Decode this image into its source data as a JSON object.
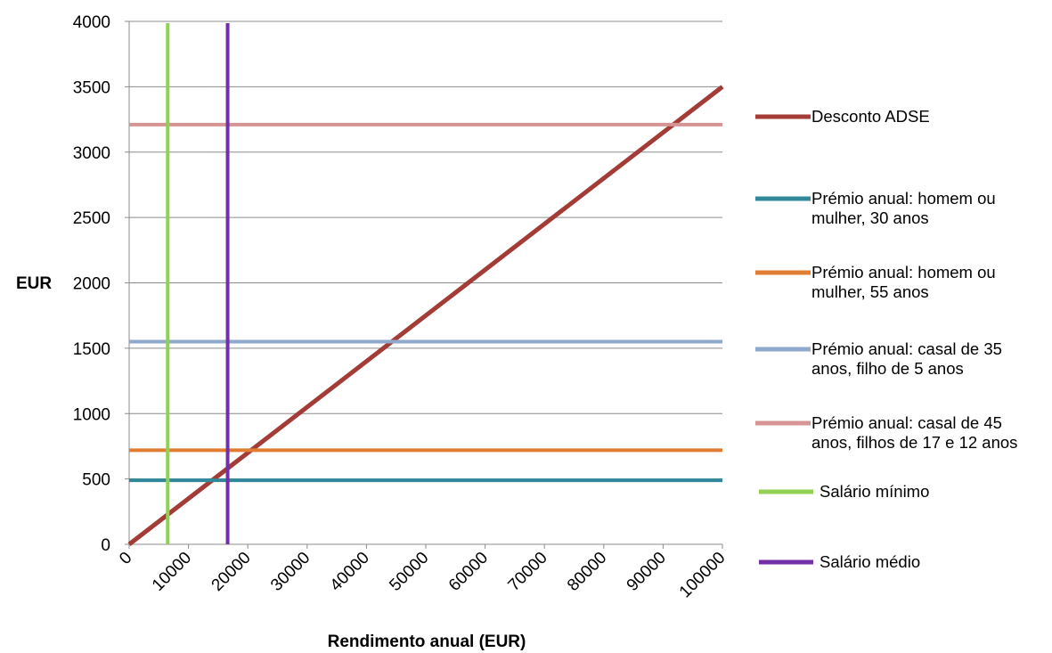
{
  "chart_data": {
    "type": "line",
    "title": "",
    "xlabel": "Rendimento anual (EUR)",
    "ylabel": "EUR",
    "xlim": [
      0,
      100000
    ],
    "ylim": [
      0,
      4000
    ],
    "x_ticks": [
      "0",
      "10000",
      "20000",
      "30000",
      "40000",
      "50000",
      "60000",
      "70000",
      "80000",
      "90000",
      "100000"
    ],
    "y_ticks": [
      "0",
      "500",
      "1000",
      "1500",
      "2000",
      "2500",
      "3000",
      "3500",
      "4000"
    ],
    "grid": "horizontal",
    "legend_position": "right",
    "series": [
      {
        "name": "Desconto ADSE",
        "color": "#a33b36",
        "kind": "line",
        "x": [
          0,
          100000
        ],
        "y": [
          0,
          3500
        ]
      },
      {
        "name": "Prémio anual: homem ou mulher, 30 anos",
        "color": "#31889a",
        "kind": "hline",
        "y": 490
      },
      {
        "name": "Prémio anual: homem ou mulher, 55 anos",
        "color": "#e07d33",
        "kind": "hline",
        "y": 720
      },
      {
        "name": "Prémio anual: casal de 35 anos, filho de 5 anos",
        "color": "#8fa8cc",
        "kind": "hline",
        "y": 1550
      },
      {
        "name": "Prémio anual: casal de 45 anos, filhos de 17 e 12 anos",
        "color": "#d69494",
        "kind": "hline",
        "y": 3210
      },
      {
        "name": "Salário mínimo",
        "color": "#8fd154",
        "kind": "vline",
        "x": 6500
      },
      {
        "name": "Salário médio",
        "color": "#7330a6",
        "kind": "vline",
        "x": 16600
      }
    ],
    "legend_lines": [
      [
        "Desconto ADSE"
      ],
      [
        "Prémio anual: homem ou",
        "mulher, 30 anos"
      ],
      [
        "Prémio anual: homem ou",
        "mulher, 55 anos"
      ],
      [
        "Prémio anual: casal de 35",
        "anos, filho de 5 anos"
      ],
      [
        "Prémio anual: casal de 45",
        "anos, filhos de 17 e 12 anos"
      ],
      [
        "Salário mínimo"
      ],
      [
        "Salário médio"
      ]
    ]
  }
}
